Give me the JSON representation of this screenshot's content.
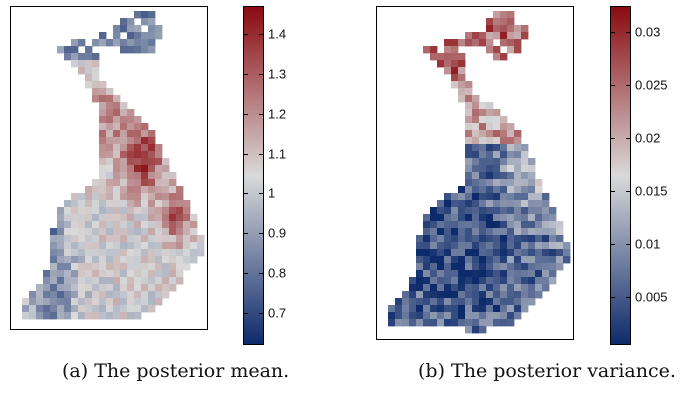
{
  "figure": {
    "panels": [
      {
        "id": "a",
        "caption_label": "(a)",
        "caption_text": "The posterior mean.",
        "scheme": "mean",
        "colorbar": {
          "min": 0.62,
          "max": 1.47,
          "ticks": [
            "0.7",
            "0.8",
            "0.9",
            "1",
            "1.1",
            "1.2",
            "1.3",
            "1.4"
          ],
          "tick_values": [
            0.7,
            0.8,
            0.9,
            1.0,
            1.1,
            1.2,
            1.3,
            1.4
          ]
        }
      },
      {
        "id": "b",
        "caption_label": "(b)",
        "caption_text": "The posterior variance.",
        "scheme": "variance",
        "colorbar": {
          "min": 0.0005,
          "max": 0.0325,
          "ticks": [
            "0.005",
            "0.01",
            "0.015",
            "0.02",
            "0.025",
            "0.03"
          ],
          "tick_values": [
            0.005,
            0.01,
            0.015,
            0.02,
            0.025,
            0.03
          ]
        }
      }
    ],
    "colormap": {
      "low": "#0d2a6b",
      "mid": "#d9d9d9",
      "high": "#8a0b10"
    }
  }
}
